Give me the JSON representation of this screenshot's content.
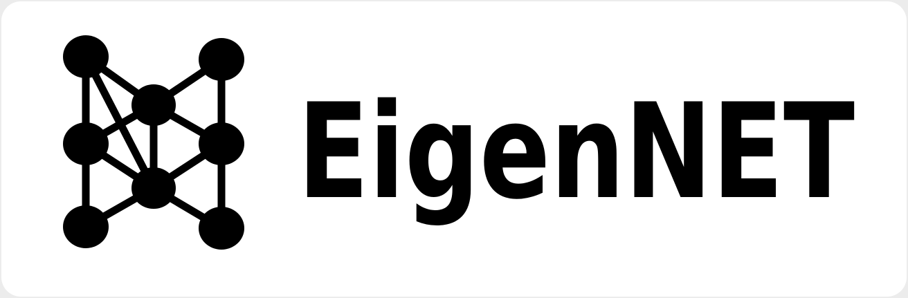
{
  "logo": {
    "text": "EigenNET"
  }
}
